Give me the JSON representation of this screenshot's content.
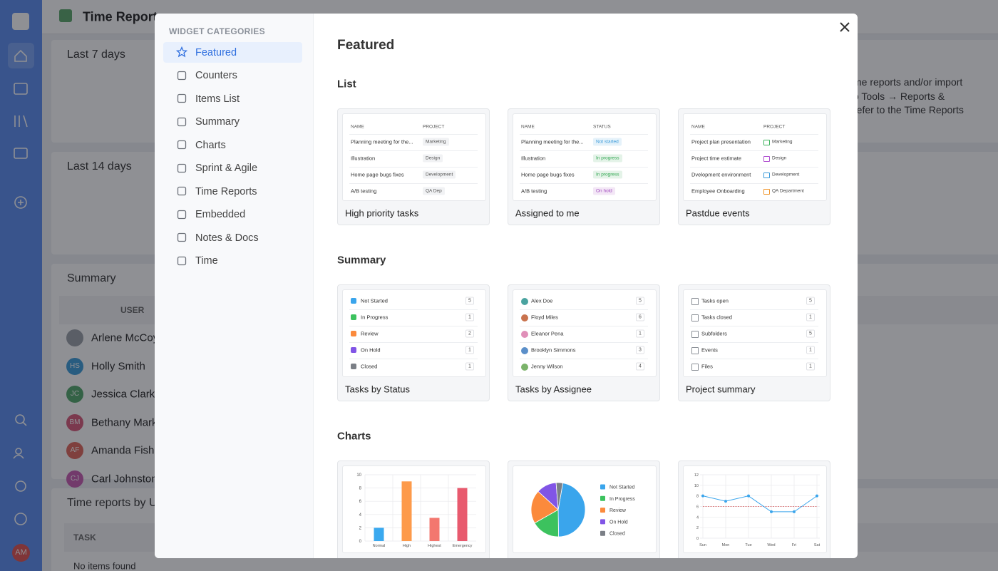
{
  "app": {
    "header_title": "Time Reports",
    "panels": [
      "Last 7 days",
      "Last 14 days",
      "Summary",
      "Time reports by U"
    ],
    "info_text": [
      "me reports and/or import",
      "o Tools → Reports &",
      "refer to the Time Reports"
    ],
    "summary_table": {
      "header": "USER",
      "users": [
        {
          "name": "Arlene McCoy"
        },
        {
          "initials": "HS",
          "name": "Holly Smith"
        },
        {
          "initials": "JC",
          "name": "Jessica Clark"
        },
        {
          "initials": "BM",
          "name": "Bethany Mark"
        },
        {
          "initials": "AF",
          "name": "Amanda Fishe"
        },
        {
          "initials": "CJ",
          "name": "Carl Johnston"
        }
      ]
    },
    "time_table": {
      "header": "TASK",
      "empty": "No items found"
    },
    "user_initials": "AM"
  },
  "modal": {
    "categories_title": "WIDGET CATEGORIES",
    "categories": [
      "Featured",
      "Counters",
      "Items List",
      "Summary",
      "Charts",
      "Sprint & Agile",
      "Time Reports",
      "Embedded",
      "Notes & Docs",
      "Time"
    ],
    "heading": "Featured",
    "sections": [
      {
        "title": "List",
        "cards": [
          {
            "title": "High priority tasks",
            "tag_style": "plain",
            "columns": [
              "NAME",
              "PROJECT"
            ],
            "rows": [
              {
                "name": "Planning meeting for the...",
                "tag": "Marketing"
              },
              {
                "name": "Illustration",
                "tag": "Design"
              },
              {
                "name": "Home page bugs fixes",
                "tag": "Development"
              },
              {
                "name": "A/B testing",
                "tag": "QA Dep"
              }
            ]
          },
          {
            "title": "Assigned to me",
            "tag_style": "pill",
            "columns": [
              "NAME",
              "STATUS"
            ],
            "rows": [
              {
                "name": "Planning meeting for the...",
                "tag": "Not started",
                "color": "#3a9ad9"
              },
              {
                "name": "Illustration",
                "tag": "In progress",
                "color": "#34a853"
              },
              {
                "name": "Home page bugs fixes",
                "tag": "In progress",
                "color": "#34a853"
              },
              {
                "name": "A/B testing",
                "tag": "On hold",
                "color": "#a24dbf"
              }
            ]
          },
          {
            "title": "Pastdue events",
            "tag_style": "icon",
            "columns": [
              "NAME",
              "PROJECT"
            ],
            "rows": [
              {
                "name": "Project plan presentation",
                "tag": "Marketing",
                "color": "#3cb35c"
              },
              {
                "name": "Project time estimate",
                "tag": "Design",
                "color": "#b04fd0"
              },
              {
                "name": "Dvelopment environment",
                "tag": "Development",
                "color": "#3a9ad9"
              },
              {
                "name": "Employee Onboarding",
                "tag": "QA Department",
                "color": "#f0952a"
              }
            ]
          }
        ]
      },
      {
        "title": "Summary",
        "cards": [
          {
            "title": "Tasks by Status",
            "marker": "square",
            "rows": [
              {
                "label": "Not Started",
                "count": 5,
                "color": "#3aa5ec"
              },
              {
                "label": "In Progress",
                "count": 1,
                "color": "#3cc25e"
              },
              {
                "label": "Review",
                "count": 2,
                "color": "#fb8a3c"
              },
              {
                "label": "On Hold",
                "count": 1,
                "color": "#8155e6"
              },
              {
                "label": "Closed",
                "count": 1,
                "color": "#7b7f86"
              }
            ]
          },
          {
            "title": "Tasks by Assignee",
            "marker": "avatar",
            "rows": [
              {
                "label": "Alex Doe",
                "count": 5,
                "color": "#4aa3a0"
              },
              {
                "label": "Floyd Miles",
                "count": 6,
                "color": "#c9734e"
              },
              {
                "label": "Eleanor Pena",
                "count": 1,
                "color": "#e08fb8"
              },
              {
                "label": "Brooklyn Simmons",
                "count": 3,
                "color": "#5b8fc9"
              },
              {
                "label": "Jenny Wilson",
                "count": 4,
                "color": "#7bb36a"
              }
            ]
          },
          {
            "title": "Project summary",
            "marker": "glyph",
            "rows": [
              {
                "label": "Tasks open",
                "count": 5,
                "color": "#8a8f96"
              },
              {
                "label": "Tasks closed",
                "count": 1,
                "color": "#8a8f96"
              },
              {
                "label": "Subfolders",
                "count": 5,
                "color": "#8a8f96"
              },
              {
                "label": "Events",
                "count": 1,
                "color": "#8a8f96"
              },
              {
                "label": "Files",
                "count": 1,
                "color": "#8a8f96"
              }
            ]
          }
        ]
      },
      {
        "title": "Charts"
      }
    ]
  },
  "chart_data": [
    {
      "type": "bar",
      "categories": [
        "Normal",
        "High",
        "Highest",
        "Emergency"
      ],
      "values": [
        2,
        9,
        3.5,
        8
      ],
      "colors": [
        "#3aa9ef",
        "#fd9a4a",
        "#f3776f",
        "#e85a6e"
      ],
      "ylim": [
        0,
        10
      ],
      "yticks": [
        0,
        2,
        4,
        6,
        8,
        10
      ],
      "grid": true
    },
    {
      "type": "pie",
      "categories": [
        "Not Started",
        "In Progress",
        "Review",
        "On Hold",
        "Closed"
      ],
      "values": [
        47,
        17,
        20,
        12,
        4
      ],
      "colors": [
        "#3aa5ec",
        "#3cc25e",
        "#fb8a3c",
        "#8155e6",
        "#7b7f86"
      ],
      "legend": "right"
    },
    {
      "type": "line",
      "categories": [
        "Sun",
        "Mon",
        "Tue",
        "Wed",
        "Fri",
        "Sat"
      ],
      "values": [
        8,
        7,
        8,
        5,
        5,
        8
      ],
      "color": "#3aa5ec",
      "ylim": [
        0,
        12
      ],
      "yticks": [
        0,
        2,
        4,
        6,
        8,
        10,
        12
      ],
      "reference_line": 6,
      "reference_color": "#e06666",
      "grid": true
    }
  ]
}
